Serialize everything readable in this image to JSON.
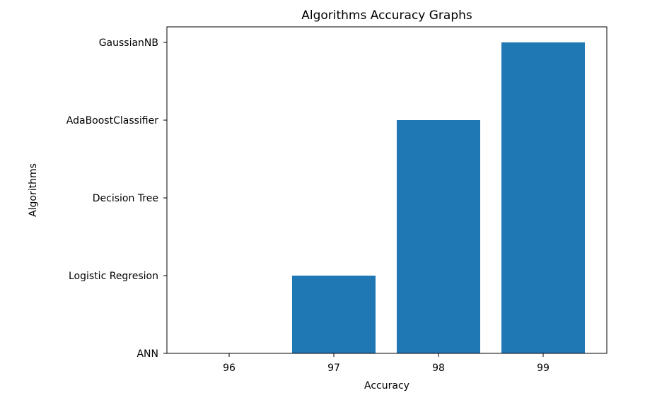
{
  "chart_data": {
    "type": "bar",
    "title": "Algorithms Accuracy Graphs",
    "xlabel": "Accuracy",
    "ylabel": "Algorithms",
    "categories": [
      "96",
      "97",
      "98",
      "99"
    ],
    "values": [
      "ANN",
      "Logistic Regresion",
      "AdaBoostClassifier",
      "GaussianNB"
    ],
    "y_levels": [
      "ANN",
      "Logistic Regresion",
      "Decision Tree",
      "AdaBoostClassifier",
      "GaussianNB"
    ],
    "grid": false,
    "bar_color": "#1f77b4"
  }
}
